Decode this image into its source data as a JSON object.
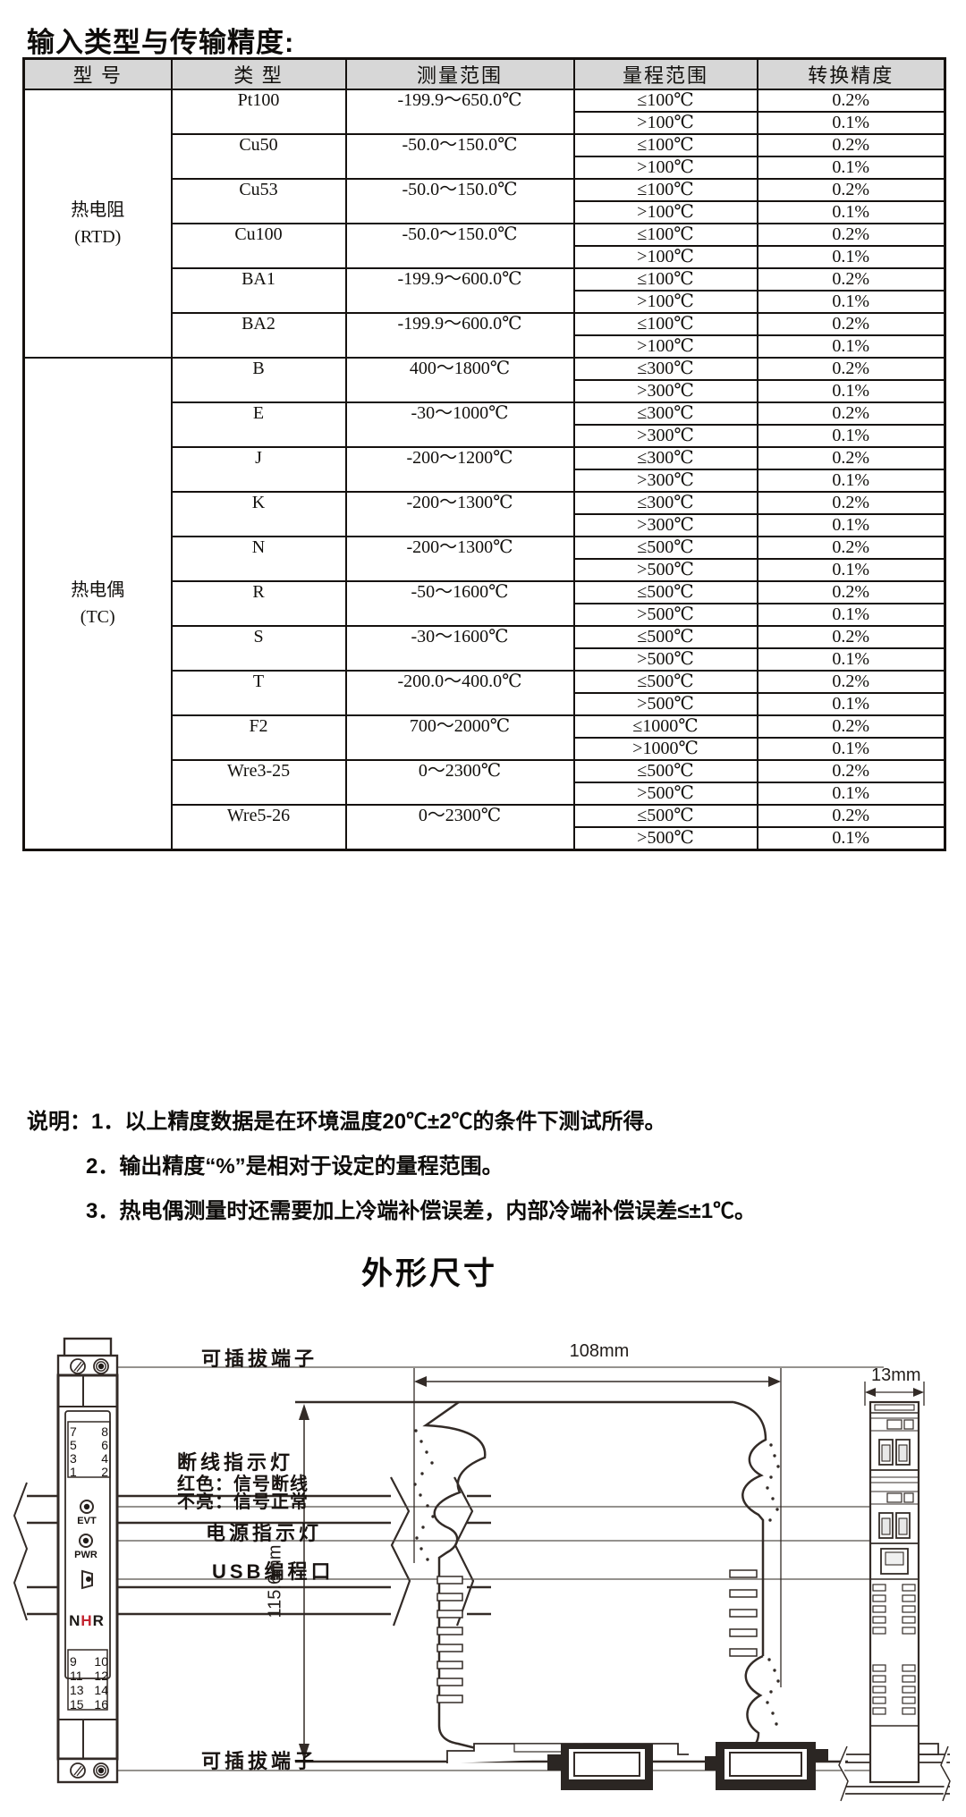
{
  "page": {
    "title": "输入类型与传输精度:"
  },
  "table": {
    "headers": [
      "型  号",
      "类  型",
      "测量范围",
      "量程范围",
      "转换精度"
    ],
    "groups": [
      {
        "model": "热电阻",
        "model_sub": "(RTD)",
        "types": [
          {
            "name": "Pt100",
            "range": "-199.9～650.0℃",
            "spans": [
              {
                "span": "≤100℃",
                "acc": "0.2%"
              },
              {
                "span": ">100℃",
                "acc": "0.1%"
              }
            ]
          },
          {
            "name": "Cu50",
            "range": "-50.0～150.0℃",
            "spans": [
              {
                "span": "≤100℃",
                "acc": "0.2%"
              },
              {
                "span": ">100℃",
                "acc": "0.1%"
              }
            ]
          },
          {
            "name": "Cu53",
            "range": "-50.0～150.0℃",
            "spans": [
              {
                "span": "≤100℃",
                "acc": "0.2%"
              },
              {
                "span": ">100℃",
                "acc": "0.1%"
              }
            ]
          },
          {
            "name": "Cu100",
            "range": "-50.0～150.0℃",
            "spans": [
              {
                "span": "≤100℃",
                "acc": "0.2%"
              },
              {
                "span": ">100℃",
                "acc": "0.1%"
              }
            ]
          },
          {
            "name": "BA1",
            "range": "-199.9～600.0℃",
            "spans": [
              {
                "span": "≤100℃",
                "acc": "0.2%"
              },
              {
                "span": ">100℃",
                "acc": "0.1%"
              }
            ]
          },
          {
            "name": "BA2",
            "range": "-199.9～600.0℃",
            "spans": [
              {
                "span": "≤100℃",
                "acc": "0.2%"
              },
              {
                "span": ">100℃",
                "acc": "0.1%"
              }
            ]
          }
        ]
      },
      {
        "model": "热电偶",
        "model_sub": "(TC)",
        "types": [
          {
            "name": "B",
            "range": "400～1800℃",
            "spans": [
              {
                "span": "≤300℃",
                "acc": "0.2%"
              },
              {
                "span": ">300℃",
                "acc": "0.1%"
              }
            ]
          },
          {
            "name": "E",
            "range": "-30～1000℃",
            "spans": [
              {
                "span": "≤300℃",
                "acc": "0.2%"
              },
              {
                "span": ">300℃",
                "acc": "0.1%"
              }
            ]
          },
          {
            "name": "J",
            "range": "-200～1200℃",
            "spans": [
              {
                "span": "≤300℃",
                "acc": "0.2%"
              },
              {
                "span": ">300℃",
                "acc": "0.1%"
              }
            ]
          },
          {
            "name": "K",
            "range": "-200～1300℃",
            "spans": [
              {
                "span": "≤300℃",
                "acc": "0.2%"
              },
              {
                "span": ">300℃",
                "acc": "0.1%"
              }
            ]
          },
          {
            "name": "N",
            "range": "-200～1300℃",
            "spans": [
              {
                "span": "≤500℃",
                "acc": "0.2%"
              },
              {
                "span": ">500℃",
                "acc": "0.1%"
              }
            ]
          },
          {
            "name": "R",
            "range": "-50～1600℃",
            "spans": [
              {
                "span": "≤500℃",
                "acc": "0.2%"
              },
              {
                "span": ">500℃",
                "acc": "0.1%"
              }
            ]
          },
          {
            "name": "S",
            "range": "-30～1600℃",
            "spans": [
              {
                "span": "≤500℃",
                "acc": "0.2%"
              },
              {
                "span": ">500℃",
                "acc": "0.1%"
              }
            ]
          },
          {
            "name": "T",
            "range": "-200.0～400.0℃",
            "spans": [
              {
                "span": "≤500℃",
                "acc": "0.2%"
              },
              {
                "span": ">500℃",
                "acc": "0.1%"
              }
            ]
          },
          {
            "name": "F2",
            "range": "700～2000℃",
            "spans": [
              {
                "span": "≤1000℃",
                "acc": "0.2%"
              },
              {
                "span": ">1000℃",
                "acc": "0.1%"
              }
            ]
          },
          {
            "name": "Wre3-25",
            "range": "0～2300℃",
            "spans": [
              {
                "span": "≤500℃",
                "acc": "0.2%"
              },
              {
                "span": ">500℃",
                "acc": "0.1%"
              }
            ]
          },
          {
            "name": "Wre5-26",
            "range": "0～2300℃",
            "spans": [
              {
                "span": "≤500℃",
                "acc": "0.2%"
              },
              {
                "span": ">500℃",
                "acc": "0.1%"
              }
            ]
          }
        ]
      }
    ]
  },
  "notes": {
    "label": "说明：",
    "items": [
      "1．以上精度数据是在环境温度20℃±2℃的条件下测试所得。",
      "2．输出精度“%”是相对于设定的量程范围。",
      "3．热电偶测量时还需要加上冷端补偿误差，内部冷端补偿误差≤±1℃。"
    ]
  },
  "dimensions": {
    "section_title": "外形尺寸",
    "width_label": "108mm",
    "height_label": "115.6mm",
    "depth_label": "13mm"
  },
  "front_view": {
    "labels": {
      "terminal_top": "可插拔端子",
      "terminal_bottom": "可插拔端子",
      "break_indicator_title": "断线指示灯",
      "break_indicator_red": "红色：信号断线",
      "break_indicator_off": "不亮：信号正常",
      "power_indicator": "电源指示灯",
      "usb_port": "USB编程口"
    },
    "device": {
      "evt": "EVT",
      "pwr": "PWR",
      "logo_n": "N",
      "logo_h": "H",
      "logo_r": "R",
      "terminals_upper": [
        [
          "7",
          "8"
        ],
        [
          "5",
          "6"
        ],
        [
          "3",
          "4"
        ],
        [
          "1",
          "2"
        ]
      ],
      "terminals_lower": [
        [
          "9",
          "10"
        ],
        [
          "11",
          "12"
        ],
        [
          "13",
          "14"
        ],
        [
          "15",
          "16"
        ]
      ]
    }
  },
  "colors": {
    "logo_red": "#c32430",
    "line": "#332b27",
    "table_header_bg": "#d7d7d7"
  }
}
